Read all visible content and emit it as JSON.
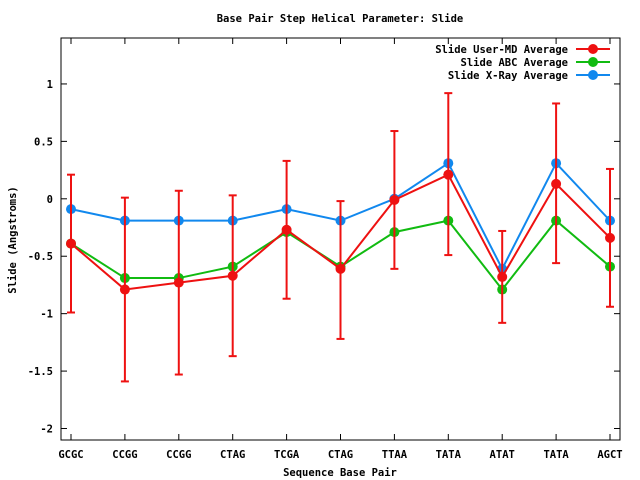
{
  "chart_data": {
    "type": "line",
    "title": "Base Pair Step Helical Parameter: Slide",
    "xlabel": "Sequence Base Pair",
    "ylabel": "Slide (Angstroms)",
    "categories": [
      "GCGC",
      "CCGG",
      "CCGG",
      "CTAG",
      "TCGA",
      "CTAG",
      "TTAA",
      "TATA",
      "ATAT",
      "TATA",
      "AGCT"
    ],
    "ylim": [
      -2.1,
      1.4
    ],
    "yticks": [
      -2,
      -1.5,
      -1,
      -0.5,
      0,
      0.5,
      1
    ],
    "ytick_labels": [
      "-2",
      "-1.5",
      "-1",
      "-0.5",
      "0",
      "0.5",
      "1"
    ],
    "grid": false,
    "legend_position": "top-right",
    "series": [
      {
        "name": "Slide User-MD Average",
        "color": "#ee1111",
        "values": [
          -0.39,
          -0.79,
          -0.73,
          -0.67,
          -0.27,
          -0.61,
          -0.01,
          0.21,
          -0.68,
          0.13,
          -0.34
        ],
        "error_low": [
          -0.99,
          -1.59,
          -1.53,
          -1.37,
          -0.87,
          -1.22,
          -0.61,
          -0.49,
          -1.08,
          -0.56,
          -0.94
        ],
        "error_high": [
          0.21,
          0.01,
          0.07,
          0.03,
          0.33,
          -0.02,
          0.59,
          0.92,
          -0.28,
          0.83,
          0.26
        ]
      },
      {
        "name": "Slide ABC Average",
        "color": "#11bb11",
        "values": [
          -0.39,
          -0.69,
          -0.69,
          -0.59,
          -0.29,
          -0.59,
          -0.29,
          -0.19,
          -0.79,
          -0.19,
          -0.59
        ]
      },
      {
        "name": "Slide X-Ray Average",
        "color": "#1188ee",
        "values": [
          -0.09,
          -0.19,
          -0.19,
          -0.19,
          -0.09,
          -0.19,
          0.0,
          0.31,
          -0.61,
          0.31,
          -0.19
        ]
      }
    ]
  }
}
